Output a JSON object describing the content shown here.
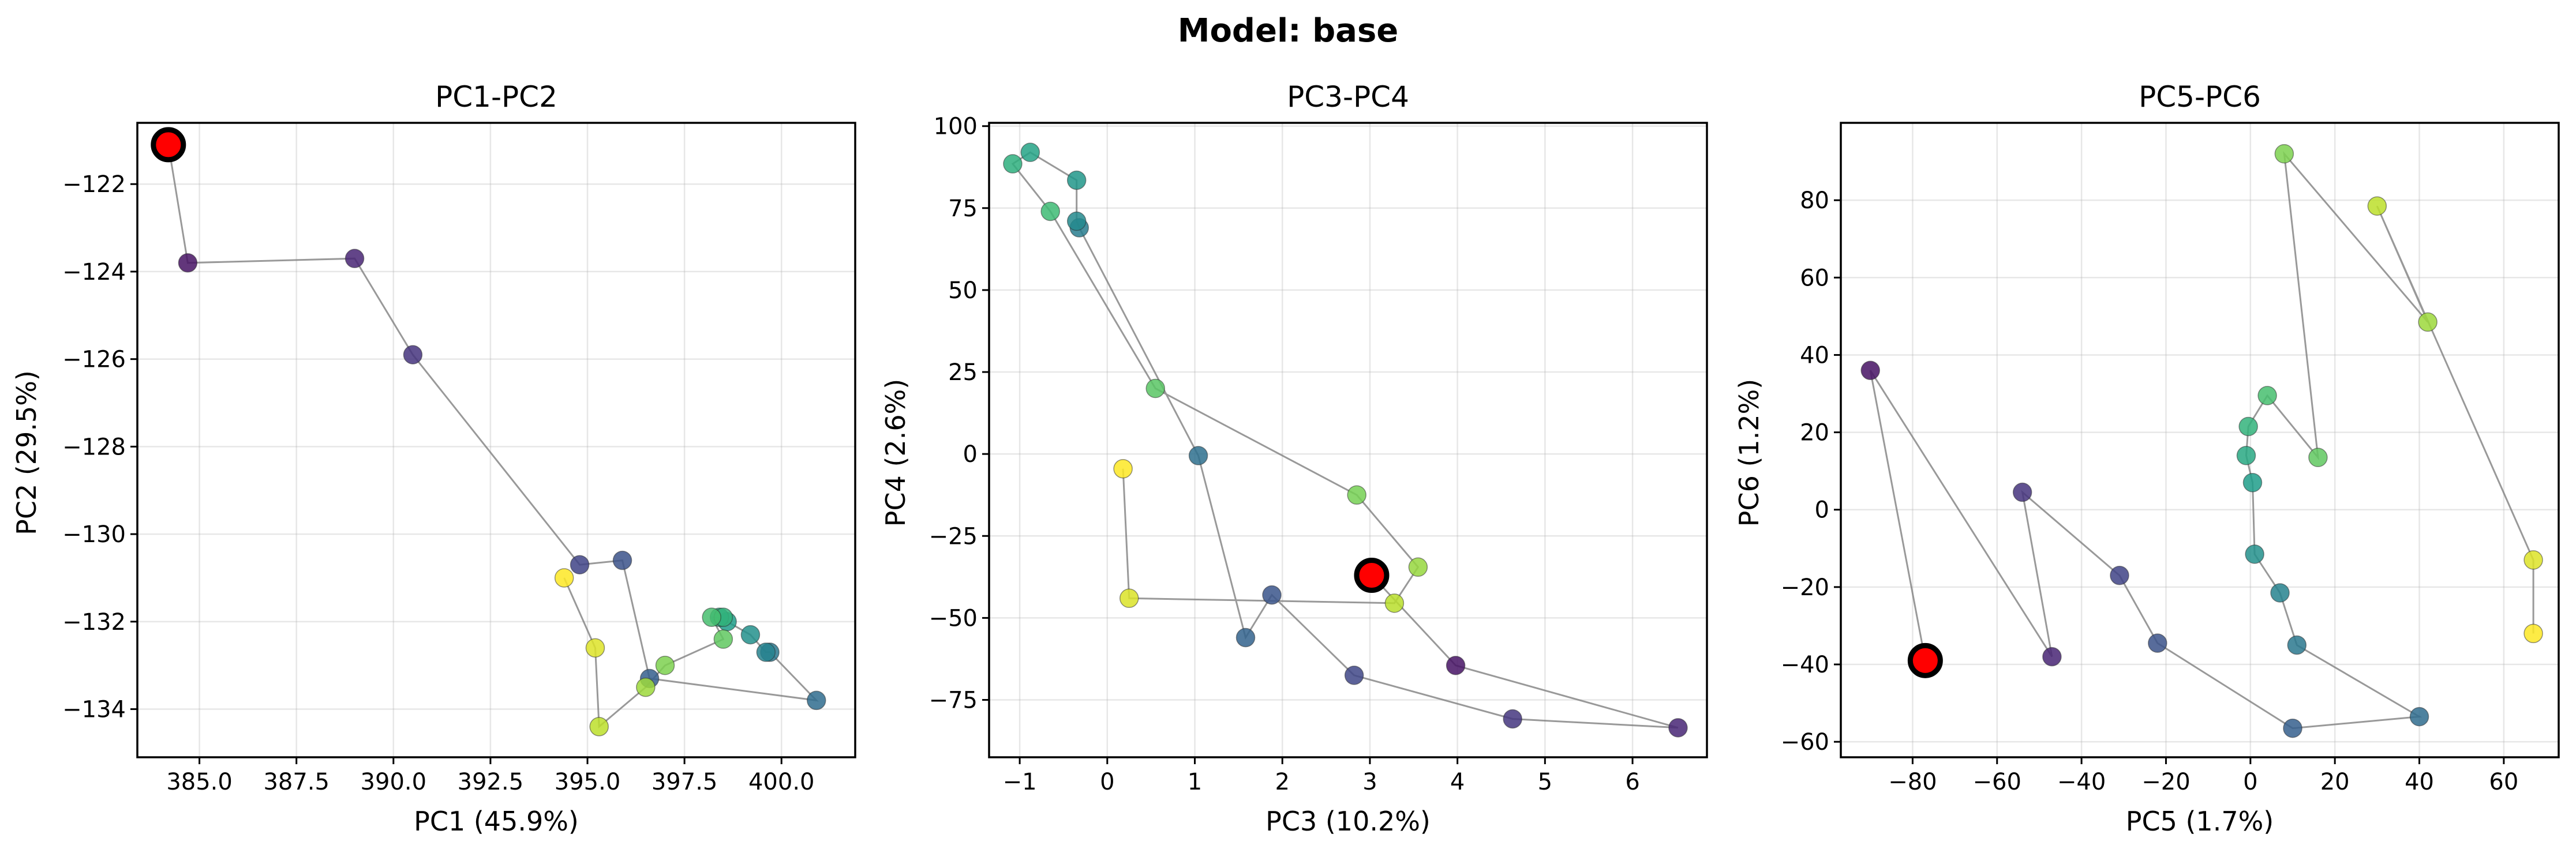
{
  "figure": {
    "suptitle": "Model: base"
  },
  "chart_data": [
    {
      "type": "scatter",
      "title": "PC1-PC2",
      "xlabel": "PC1 (45.9%)",
      "ylabel": "PC2 (29.5%)",
      "xlim": [
        383.4,
        401.9
      ],
      "ylim": [
        -135.1,
        -120.6
      ],
      "xticks": [
        385.0,
        387.5,
        390.0,
        392.5,
        395.0,
        397.5,
        400.0
      ],
      "xtick_labels": [
        "385.0",
        "387.5",
        "390.0",
        "392.5",
        "395.0",
        "397.5",
        "400.0"
      ],
      "yticks": [
        -134,
        -132,
        -130,
        -128,
        -126,
        -124,
        -122
      ],
      "ytick_labels": [
        "−134",
        "−132",
        "−130",
        "−128",
        "−126",
        "−124",
        "−122"
      ],
      "grid": true,
      "start": [
        384.2,
        -121.1
      ],
      "points": [
        [
          384.2,
          -121.1
        ],
        [
          384.7,
          -123.8
        ],
        [
          389.0,
          -123.7
        ],
        [
          390.5,
          -125.9
        ],
        [
          394.8,
          -130.7
        ],
        [
          395.9,
          -130.6
        ],
        [
          396.6,
          -133.3
        ],
        [
          400.9,
          -133.8
        ],
        [
          399.7,
          -132.7
        ],
        [
          399.6,
          -132.7
        ],
        [
          399.2,
          -132.3
        ],
        [
          398.6,
          -132.0
        ],
        [
          398.4,
          -131.9
        ],
        [
          398.5,
          -131.9
        ],
        [
          398.2,
          -131.9
        ],
        [
          398.5,
          -132.4
        ],
        [
          397.0,
          -133.0
        ],
        [
          396.5,
          -133.5
        ],
        [
          395.3,
          -134.4
        ],
        [
          395.2,
          -132.6
        ],
        [
          394.4,
          -131.0
        ]
      ]
    },
    {
      "type": "scatter",
      "title": "PC3-PC4",
      "xlabel": "PC3 (10.2%)",
      "ylabel": "PC4 (2.6%)",
      "xlim": [
        -1.35,
        6.85
      ],
      "ylim": [
        -92.5,
        101
      ],
      "xticks": [
        -1,
        0,
        1,
        2,
        3,
        4,
        5,
        6
      ],
      "xtick_labels": [
        "−1",
        "0",
        "1",
        "2",
        "3",
        "4",
        "5",
        "6"
      ],
      "yticks": [
        -75,
        -50,
        -25,
        0,
        25,
        50,
        75,
        100
      ],
      "ytick_labels": [
        "−75",
        "−50",
        "−25",
        "0",
        "25",
        "50",
        "75",
        "100"
      ],
      "grid": true,
      "start": [
        3.02,
        -37
      ],
      "points": [
        [
          3.02,
          -37
        ],
        [
          3.98,
          -64.5
        ],
        [
          6.52,
          -83.5
        ],
        [
          4.63,
          -80.8
        ],
        [
          2.82,
          -67.5
        ],
        [
          1.88,
          -43
        ],
        [
          1.58,
          -56
        ],
        [
          1.04,
          -0.5
        ],
        [
          -0.32,
          69
        ],
        [
          -0.35,
          71
        ],
        [
          -0.35,
          83.5
        ],
        [
          -0.88,
          92
        ],
        [
          -1.08,
          88.5
        ],
        [
          -0.65,
          74
        ],
        [
          0.55,
          20
        ],
        [
          2.85,
          -12.5
        ],
        [
          3.55,
          -34.5
        ],
        [
          3.28,
          -45.5
        ],
        [
          0.25,
          -44
        ],
        [
          0.18,
          -4.5
        ]
      ]
    },
    {
      "type": "scatter",
      "title": "PC5-PC6",
      "xlabel": "PC5 (1.7%)",
      "ylabel": "PC6 (1.2%)",
      "xlim": [
        -97,
        73
      ],
      "ylim": [
        -64,
        100
      ],
      "xticks": [
        -80,
        -60,
        -40,
        -20,
        0,
        20,
        40,
        60
      ],
      "xtick_labels": [
        "−80",
        "−60",
        "−40",
        "−20",
        "0",
        "20",
        "40",
        "60"
      ],
      "yticks": [
        -60,
        -40,
        -20,
        0,
        20,
        40,
        60,
        80
      ],
      "ytick_labels": [
        "−60",
        "−40",
        "−20",
        "0",
        "20",
        "40",
        "60",
        "80"
      ],
      "grid": true,
      "start": [
        -77,
        -39
      ],
      "points": [
        [
          -77,
          -39
        ],
        [
          -90,
          36
        ],
        [
          -47,
          -38
        ],
        [
          -54,
          4.5
        ],
        [
          -31,
          -17
        ],
        [
          -22,
          -34.5
        ],
        [
          10,
          -56.5
        ],
        [
          40,
          -53.5
        ],
        [
          11,
          -35
        ],
        [
          7,
          -21.5
        ],
        [
          1,
          -11.5
        ],
        [
          0.5,
          7
        ],
        [
          -1,
          14
        ],
        [
          -0.5,
          21.5
        ],
        [
          4,
          29.5
        ],
        [
          16,
          13.5
        ],
        [
          8,
          92
        ],
        [
          42,
          48.5
        ],
        [
          30,
          78.5
        ],
        [
          67,
          -13
        ],
        [
          67,
          -32
        ]
      ]
    }
  ],
  "style": {
    "colormap": "viridis",
    "trail_color": "#808080",
    "start_color": "#ff0000"
  }
}
